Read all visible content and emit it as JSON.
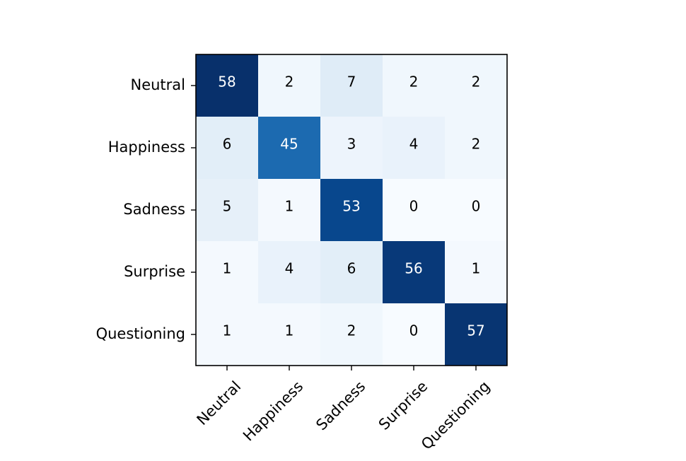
{
  "chart_data": {
    "type": "heatmap",
    "title": "",
    "xlabel": "",
    "ylabel": "",
    "row_labels": [
      "Neutral",
      "Happiness",
      "Sadness",
      "Surprise",
      "Questioning"
    ],
    "col_labels": [
      "Neutral",
      "Happiness",
      "Sadness",
      "Surprise",
      "Questioning"
    ],
    "values": [
      [
        58,
        2,
        7,
        2,
        2
      ],
      [
        6,
        45,
        3,
        4,
        2
      ],
      [
        5,
        1,
        53,
        0,
        0
      ],
      [
        1,
        4,
        6,
        56,
        1
      ],
      [
        1,
        1,
        2,
        0,
        57
      ]
    ],
    "colormap": "Blues",
    "color_range": [
      0,
      58
    ],
    "colors": {
      "low": "#f7fbff",
      "high": "#08306b",
      "text_dark": "#000000",
      "text_light": "#ffffff",
      "frame": "#000000"
    },
    "grid": false,
    "legend": "none"
  }
}
